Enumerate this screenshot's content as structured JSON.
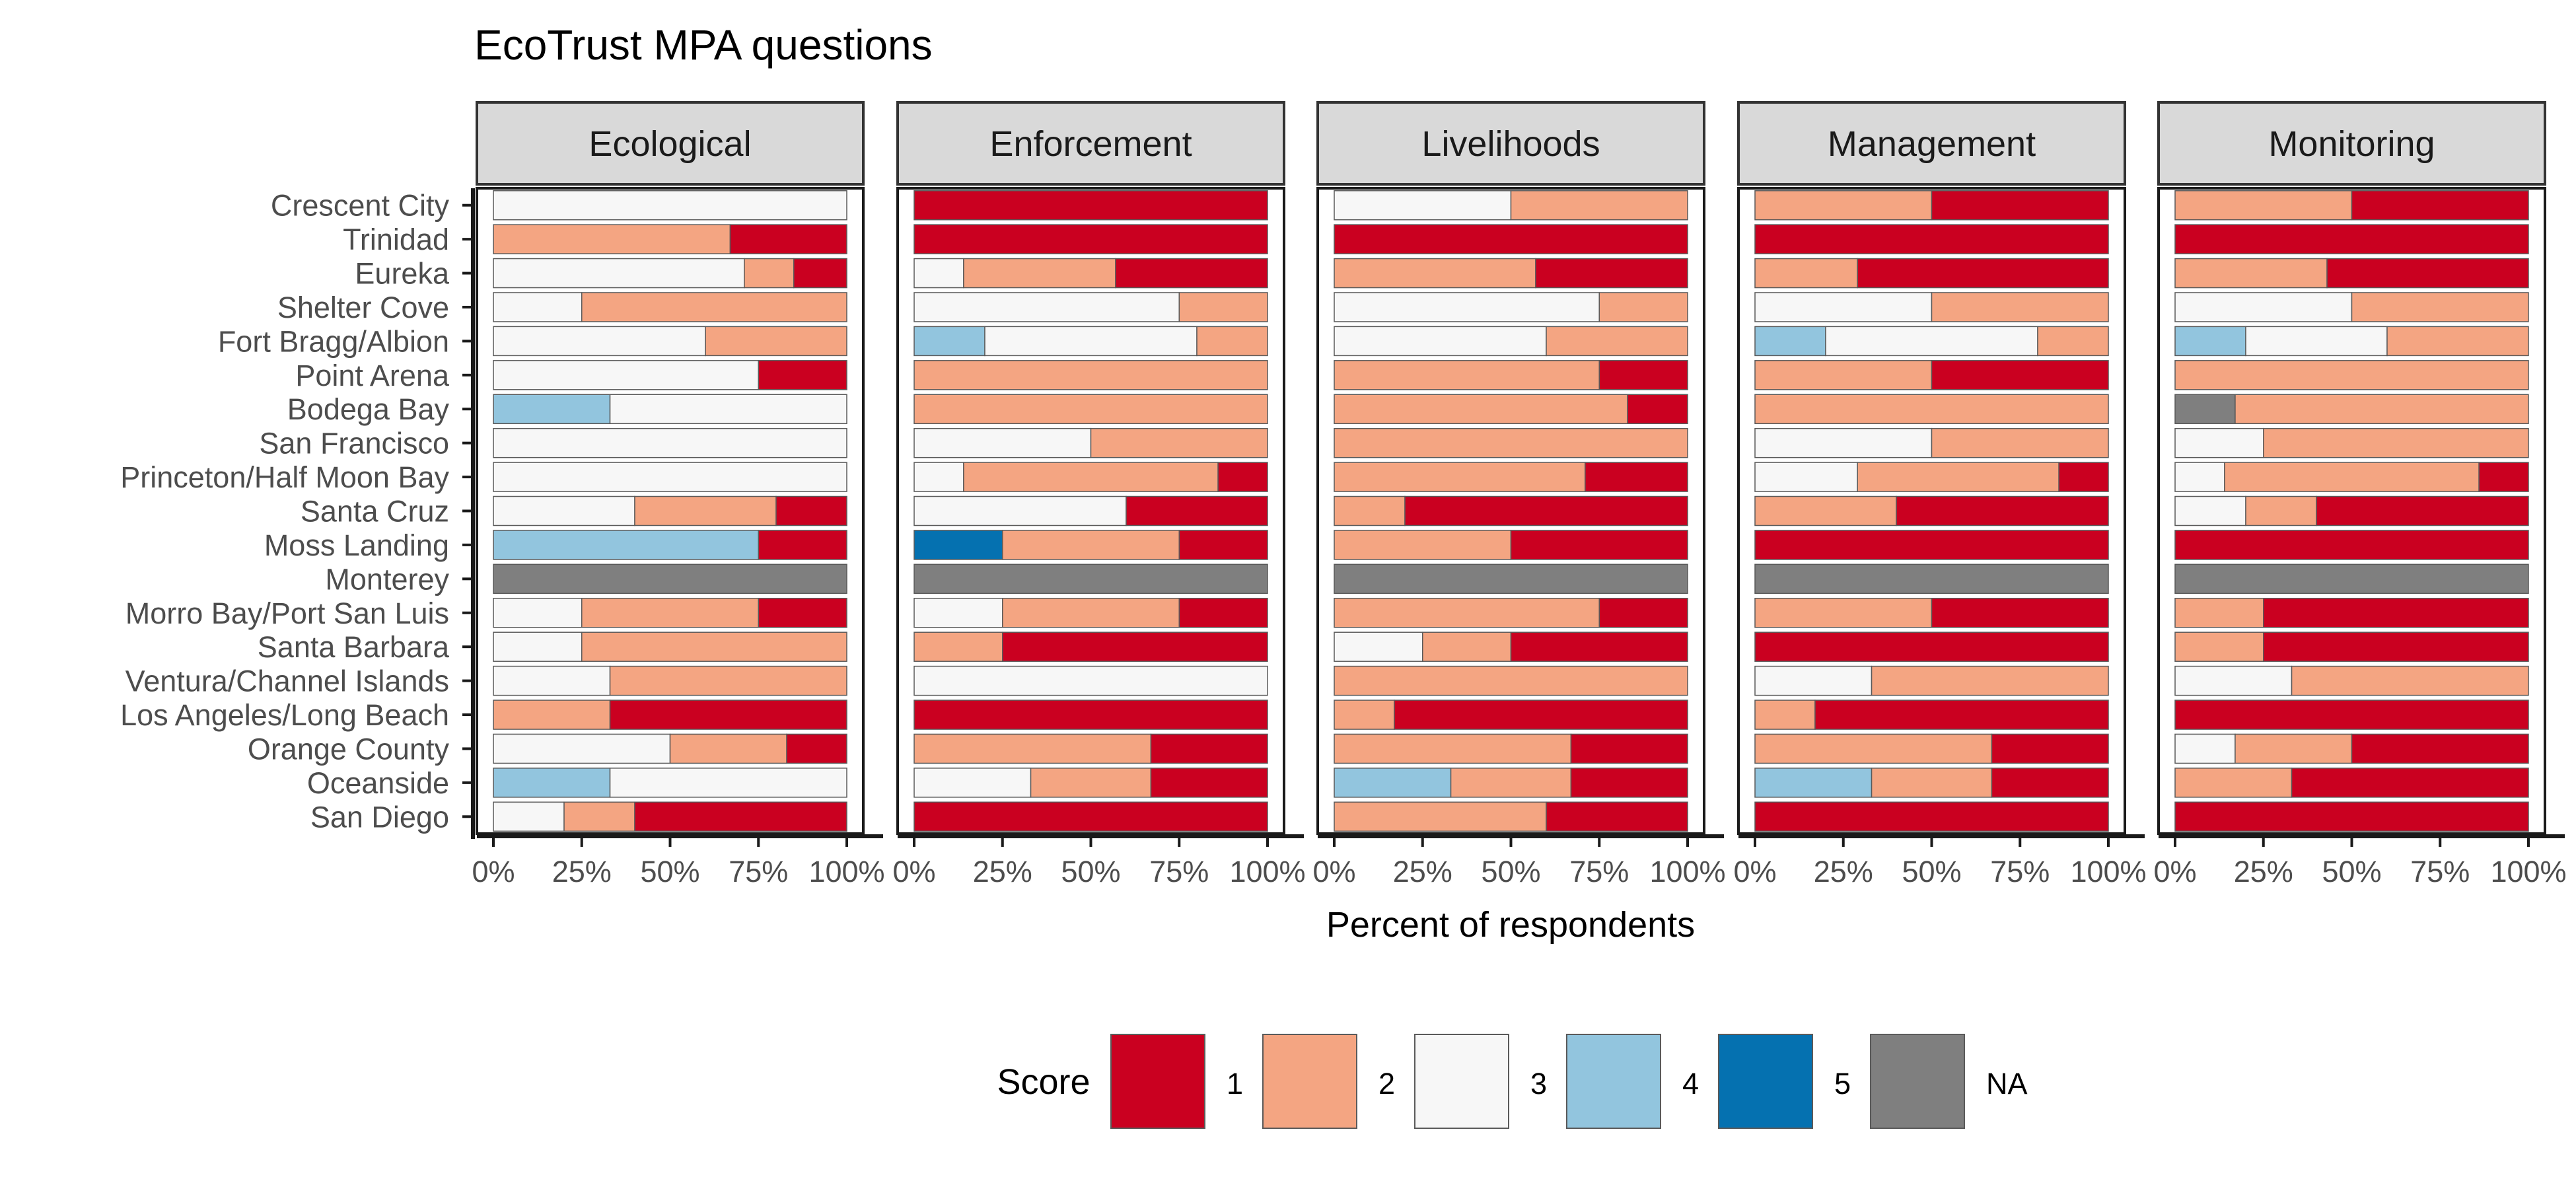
{
  "chart_data": {
    "type": "bar",
    "orientation": "horizontal",
    "stacked": "percent",
    "title": "EcoTrust MPA questions",
    "xlabel": "Percent of respondents",
    "ylabel": "",
    "xlim": [
      0,
      100
    ],
    "x_ticks": [
      "0%",
      "25%",
      "50%",
      "75%",
      "100%"
    ],
    "categories": [
      "Crescent City",
      "Trinidad",
      "Eureka",
      "Shelter Cove",
      "Fort Bragg/Albion",
      "Point Arena",
      "Bodega Bay",
      "San Francisco",
      "Princeton/Half Moon Bay",
      "Santa Cruz",
      "Moss Landing",
      "Monterey",
      "Morro Bay/Port San Luis",
      "Santa Barbara",
      "Ventura/Channel Islands",
      "Los Angeles/Long Beach",
      "Orange County",
      "Oceanside",
      "San Diego"
    ],
    "stack_order": [
      "NA",
      "5",
      "4",
      "3",
      "2",
      "1"
    ],
    "legend": {
      "title": "Score",
      "position": "bottom",
      "items": [
        {
          "label": "1",
          "color": "#ca0020"
        },
        {
          "label": "2",
          "color": "#f4a582"
        },
        {
          "label": "3",
          "color": "#f7f7f7"
        },
        {
          "label": "4",
          "color": "#92c5de"
        },
        {
          "label": "5",
          "color": "#0571b0"
        },
        {
          "label": "NA",
          "color": "#7f7f7f"
        }
      ]
    },
    "panels": [
      {
        "name": "Ecological",
        "rows": [
          {
            "3": 100
          },
          {
            "2": 67,
            "1": 33
          },
          {
            "3": 71,
            "2": 14,
            "1": 15
          },
          {
            "3": 25,
            "2": 75
          },
          {
            "3": 60,
            "2": 40
          },
          {
            "3": 75,
            "1": 25
          },
          {
            "4": 33,
            "3": 67
          },
          {
            "3": 100
          },
          {
            "3": 100
          },
          {
            "3": 40,
            "2": 40,
            "1": 20
          },
          {
            "4": 75,
            "1": 25
          },
          {
            "NA": 100
          },
          {
            "3": 25,
            "2": 50,
            "1": 25
          },
          {
            "3": 25,
            "2": 75
          },
          {
            "3": 33,
            "2": 67
          },
          {
            "2": 33,
            "1": 67
          },
          {
            "3": 50,
            "2": 33,
            "1": 17
          },
          {
            "4": 33,
            "3": 67
          },
          {
            "3": 20,
            "2": 20,
            "1": 60
          }
        ]
      },
      {
        "name": "Enforcement",
        "rows": [
          {
            "1": 100
          },
          {
            "1": 100
          },
          {
            "3": 14,
            "2": 43,
            "1": 43
          },
          {
            "3": 75,
            "2": 25
          },
          {
            "4": 20,
            "3": 60,
            "2": 20
          },
          {
            "2": 100
          },
          {
            "2": 100
          },
          {
            "3": 50,
            "2": 50
          },
          {
            "3": 14,
            "2": 72,
            "1": 14
          },
          {
            "3": 60,
            "1": 40
          },
          {
            "5": 25,
            "2": 50,
            "1": 25
          },
          {
            "NA": 100
          },
          {
            "3": 25,
            "2": 50,
            "1": 25
          },
          {
            "2": 25,
            "1": 75
          },
          {
            "3": 100
          },
          {
            "1": 100
          },
          {
            "2": 67,
            "1": 33
          },
          {
            "3": 33,
            "2": 34,
            "1": 33
          },
          {
            "1": 100
          }
        ]
      },
      {
        "name": "Livelihoods",
        "rows": [
          {
            "3": 50,
            "2": 50
          },
          {
            "1": 100
          },
          {
            "2": 57,
            "1": 43
          },
          {
            "3": 75,
            "2": 25
          },
          {
            "3": 60,
            "2": 40
          },
          {
            "2": 75,
            "1": 25
          },
          {
            "2": 83,
            "1": 17
          },
          {
            "2": 100
          },
          {
            "2": 71,
            "1": 29
          },
          {
            "2": 20,
            "1": 80
          },
          {
            "2": 50,
            "1": 50
          },
          {
            "NA": 100
          },
          {
            "2": 75,
            "1": 25
          },
          {
            "3": 25,
            "2": 25,
            "1": 50
          },
          {
            "2": 100
          },
          {
            "2": 17,
            "1": 83
          },
          {
            "2": 67,
            "1": 33
          },
          {
            "4": 33,
            "2": 34,
            "1": 33
          },
          {
            "2": 60,
            "1": 40
          }
        ]
      },
      {
        "name": "Management",
        "rows": [
          {
            "2": 50,
            "1": 50
          },
          {
            "1": 100
          },
          {
            "2": 29,
            "1": 71
          },
          {
            "3": 50,
            "2": 50
          },
          {
            "4": 20,
            "3": 60,
            "2": 20
          },
          {
            "2": 50,
            "1": 50
          },
          {
            "2": 100
          },
          {
            "3": 50,
            "2": 50
          },
          {
            "3": 29,
            "2": 57,
            "1": 14
          },
          {
            "2": 40,
            "1": 60
          },
          {
            "1": 100
          },
          {
            "NA": 100
          },
          {
            "2": 50,
            "1": 50
          },
          {
            "1": 100
          },
          {
            "3": 33,
            "2": 67
          },
          {
            "2": 17,
            "1": 83
          },
          {
            "2": 67,
            "1": 33
          },
          {
            "4": 33,
            "2": 34,
            "1": 33
          },
          {
            "1": 100
          }
        ]
      },
      {
        "name": "Monitoring",
        "rows": [
          {
            "2": 50,
            "1": 50
          },
          {
            "1": 100
          },
          {
            "2": 43,
            "1": 57
          },
          {
            "3": 50,
            "2": 50
          },
          {
            "4": 20,
            "3": 40,
            "2": 40
          },
          {
            "2": 100
          },
          {
            "NA": 17,
            "2": 83
          },
          {
            "3": 25,
            "2": 75
          },
          {
            "3": 14,
            "2": 72,
            "1": 14
          },
          {
            "3": 20,
            "2": 20,
            "1": 60
          },
          {
            "1": 100
          },
          {
            "NA": 100
          },
          {
            "2": 25,
            "1": 75
          },
          {
            "2": 25,
            "1": 75
          },
          {
            "3": 33,
            "2": 67
          },
          {
            "1": 100
          },
          {
            "3": 17,
            "2": 33,
            "1": 50
          },
          {
            "2": 33,
            "1": 67
          },
          {
            "1": 100
          }
        ]
      }
    ]
  }
}
